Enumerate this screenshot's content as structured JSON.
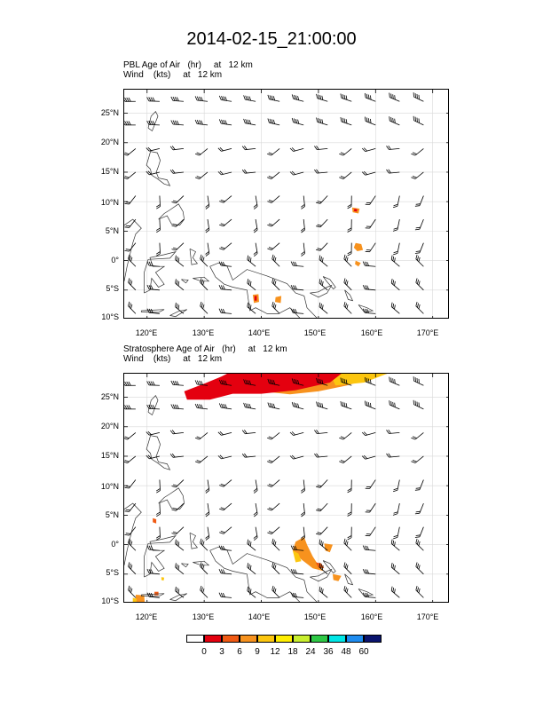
{
  "figure": {
    "title": "2014-02-15_21:00:00"
  },
  "panels": [
    {
      "name": "pbl",
      "title_line1": "PBL Age of Air   (hr)     at   12 km",
      "title_line2": "Wind    (kts)     at   12 km",
      "lat_labels": [
        "25°N",
        "20°N",
        "15°N",
        "10°N",
        "5°N",
        "0°",
        "5°S",
        "10°S"
      ],
      "lon_labels": [
        "120°E",
        "130°E",
        "140°E",
        "150°E",
        "160°E",
        "170°E"
      ]
    },
    {
      "name": "stratosphere",
      "title_line1": "Stratosphere Age of Air   (hr)     at   12 km",
      "title_line2": "Wind    (kts)     at   12 km",
      "lat_labels": [
        "25°N",
        "20°N",
        "15°N",
        "10°N",
        "5°N",
        "0°",
        "5°S",
        "10°S"
      ],
      "lon_labels": [
        "120°E",
        "130°E",
        "140°E",
        "150°E",
        "160°E",
        "170°E"
      ]
    }
  ],
  "map_extent": {
    "lon_min": 116,
    "lon_max": 173,
    "lat_min": -10,
    "lat_max": 29
  },
  "colorbar": {
    "labels": [
      "0",
      "3",
      "6",
      "9",
      "12",
      "18",
      "24",
      "36",
      "48",
      "60"
    ],
    "colors": [
      "#ffffff",
      "#e4000f",
      "#f05a14",
      "#f7921e",
      "#fcc60f",
      "#ffee00",
      "#c8ee2e",
      "#2ec846",
      "#00e6e6",
      "#1e8cf0",
      "#0a146e"
    ]
  }
}
